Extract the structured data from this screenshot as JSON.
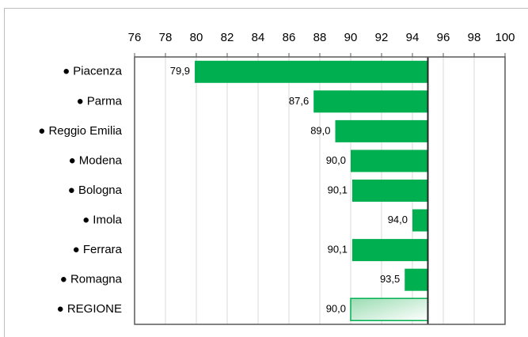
{
  "chart_data": {
    "type": "bar",
    "orientation": "horizontal",
    "categories": [
      "● Piacenza",
      "● Parma",
      "● Reggio Emilia",
      "● Modena",
      "● Bologna",
      "● Imola",
      "● Ferrara",
      "● Romagna",
      "● REGIONE"
    ],
    "values": [
      79.9,
      87.6,
      89.0,
      90.0,
      90.1,
      94.0,
      90.1,
      93.5,
      90.0
    ],
    "value_labels": [
      "79,9",
      "87,6",
      "89,0",
      "90,0",
      "90,1",
      "94,0",
      "90,1",
      "93,5",
      "90,0"
    ],
    "baseline": 95,
    "color": "#00b050",
    "xlim": [
      76,
      100
    ],
    "xticks": [
      76,
      78,
      80,
      82,
      84,
      86,
      88,
      90,
      92,
      94,
      96,
      98,
      100
    ],
    "grid": true
  }
}
